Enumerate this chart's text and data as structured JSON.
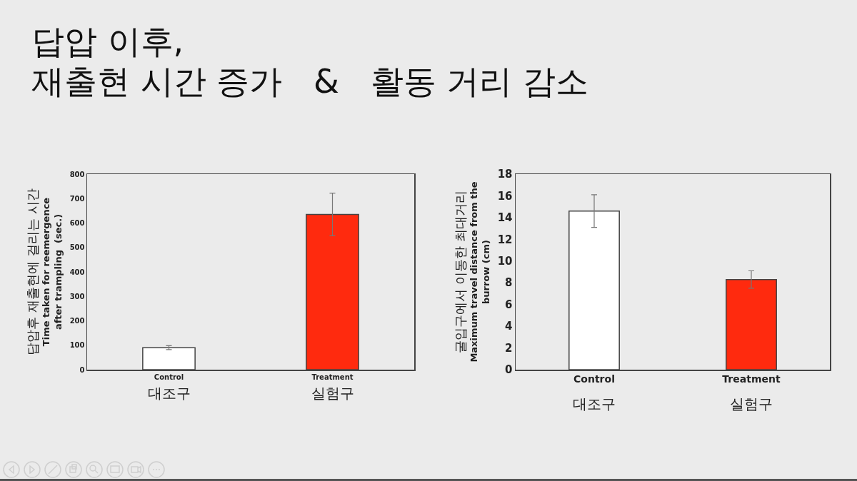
{
  "chart_data": [
    {
      "type": "bar",
      "title": "답압 이후,\n재출현 시간 증가   &   활동 거리 감소",
      "ylabel": "답압후 재출현에 걸리는 시간\nTime taken for reemergence\nafter trampling  (sec.)",
      "categories": [
        "Control\n대조구",
        "Treatment\n실험구"
      ],
      "values": [
        90,
        635
      ],
      "colors": [
        "#ffffff",
        "#ff2a0e"
      ],
      "errors": [
        8,
        87
      ],
      "ylim": [
        0,
        800
      ],
      "yticks": [
        0,
        100,
        200,
        300,
        400,
        500,
        600,
        700,
        800
      ],
      "grid": false
    },
    {
      "type": "bar",
      "ylabel": "굴입구에서 이동한 최대거리\nMaximum travel distance from the\nburrow (cm)",
      "categories": [
        "Control\n대조구",
        "Treatment\n실험구"
      ],
      "values": [
        14.6,
        8.3
      ],
      "colors": [
        "#ffffff",
        "#ff2a0e"
      ],
      "errors": [
        1.5,
        0.8
      ],
      "ylim": [
        0,
        18
      ],
      "yticks": [
        0,
        2,
        4,
        6,
        8,
        10,
        12,
        14,
        16,
        18
      ],
      "grid": false
    }
  ]
}
